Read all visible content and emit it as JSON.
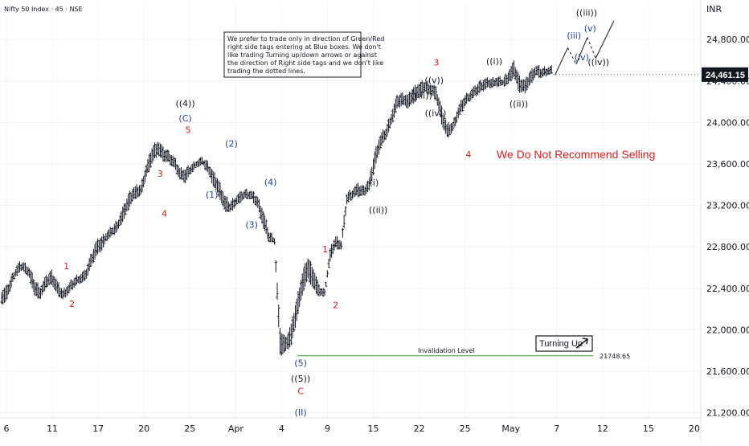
{
  "chart_data": {
    "type": "ohlc",
    "title": "Nifty 50 Index · 45 · NSE",
    "currency": "INR",
    "last_price_label": "24,461.15",
    "ylim": [
      21150,
      25150
    ],
    "y_ticks": [
      "24,800.00",
      "24,400.00",
      "24,000.00",
      "23,600.00",
      "23,200.00",
      "22,800.00",
      "22,400.00",
      "22,000.00",
      "21,600.00",
      "21,200.00"
    ],
    "y_tick_values": [
      24800,
      24400,
      24000,
      23600,
      23200,
      22800,
      22400,
      22000,
      21600,
      21200
    ],
    "x_ticks": [
      "6",
      "11",
      "17",
      "20",
      "25",
      "Apr",
      "4",
      "9",
      "15",
      "22",
      "25",
      "May",
      "7",
      "12",
      "15",
      "20"
    ],
    "note_lines": [
      "We prefer to trade only in direction of Green/Red",
      "right side tags entering at Blue boxes. We don't",
      "like trading Turning up/down arrows or against",
      "the direction of Right side tags and we don't like",
      "trading the dotted lines."
    ],
    "recommendation": "We Do Not Recommend Selling",
    "turning_label": "Turning Up",
    "invalidation_label": "Invalidation Level",
    "invalidation_value": "21748.65",
    "invalidation_level": 21748.65,
    "price_path": [
      [
        22380,
        22250
      ],
      [
        22420,
        22300
      ],
      [
        22540,
        22470
      ],
      [
        22640,
        22560
      ],
      [
        22650,
        22580
      ],
      [
        22600,
        22500
      ],
      [
        22470,
        22330
      ],
      [
        22420,
        22310
      ],
      [
        22510,
        22420
      ],
      [
        22570,
        22450
      ],
      [
        22460,
        22350
      ],
      [
        22380,
        22300
      ],
      [
        22440,
        22360
      ],
      [
        22500,
        22420
      ],
      [
        22540,
        22460
      ],
      [
        22560,
        22480
      ],
      [
        22720,
        22610
      ],
      [
        22850,
        22720
      ],
      [
        22900,
        22780
      ],
      [
        22950,
        22880
      ],
      [
        23000,
        22920
      ],
      [
        23080,
        22980
      ],
      [
        23200,
        23080
      ],
      [
        23330,
        23200
      ],
      [
        23380,
        23280
      ],
      [
        23400,
        23300
      ],
      [
        23600,
        23480
      ],
      [
        23760,
        23610
      ],
      [
        23830,
        23700
      ],
      [
        23750,
        23640
      ],
      [
        23720,
        23620
      ],
      [
        23660,
        23570
      ],
      [
        23560,
        23460
      ],
      [
        23550,
        23430
      ],
      [
        23590,
        23520
      ],
      [
        23640,
        23580
      ],
      [
        23650,
        23600
      ],
      [
        23620,
        23530
      ],
      [
        23520,
        23400
      ],
      [
        23440,
        23300
      ],
      [
        23300,
        23160
      ],
      [
        23230,
        23140
      ],
      [
        23290,
        23200
      ],
      [
        23320,
        23250
      ],
      [
        23350,
        23280
      ],
      [
        23330,
        23260
      ],
      [
        23280,
        23180
      ],
      [
        23150,
        22990
      ],
      [
        22950,
        22860
      ],
      [
        22900,
        22840
      ],
      [
        22000,
        21760
      ],
      [
        21920,
        21800
      ],
      [
        22050,
        21860
      ],
      [
        22300,
        22100
      ],
      [
        22550,
        22350
      ],
      [
        22700,
        22500
      ],
      [
        22600,
        22400
      ],
      [
        22420,
        22330
      ],
      [
        22380,
        22340
      ],
      [
        22780,
        22680
      ],
      [
        22900,
        22800
      ],
      [
        22860,
        22780
      ],
      [
        23320,
        23220
      ],
      [
        23360,
        23280
      ],
      [
        23400,
        23300
      ],
      [
        23380,
        23300
      ],
      [
        23450,
        23350
      ],
      [
        23720,
        23560
      ],
      [
        23880,
        23760
      ],
      [
        23950,
        23850
      ],
      [
        24100,
        23980
      ],
      [
        24250,
        24140
      ],
      [
        24280,
        24180
      ],
      [
        24260,
        24150
      ],
      [
        24340,
        24200
      ],
      [
        24380,
        24250
      ],
      [
        24400,
        24300
      ],
      [
        24380,
        24280
      ],
      [
        24330,
        24230
      ],
      [
        24150,
        24000
      ],
      [
        23980,
        23860
      ],
      [
        24000,
        23920
      ],
      [
        24150,
        24050
      ],
      [
        24250,
        24150
      ],
      [
        24300,
        24220
      ],
      [
        24340,
        24260
      ],
      [
        24400,
        24300
      ],
      [
        24420,
        24340
      ],
      [
        24420,
        24350
      ],
      [
        24440,
        24360
      ],
      [
        24420,
        24360
      ],
      [
        24500,
        24380
      ],
      [
        24580,
        24450
      ],
      [
        24440,
        24300
      ],
      [
        24400,
        24300
      ],
      [
        24500,
        24380
      ],
      [
        24550,
        24460
      ],
      [
        24520,
        24440
      ],
      [
        24540,
        24470
      ],
      [
        24530,
        24470
      ]
    ],
    "wave_labels": [
      {
        "text": "1",
        "color": "red",
        "t": 0.095,
        "price": 22585
      },
      {
        "text": "2",
        "color": "red",
        "t": 0.103,
        "price": 22220
      },
      {
        "text": "3",
        "color": "red",
        "t": 0.229,
        "price": 23475
      },
      {
        "text": "4",
        "color": "red",
        "t": 0.235,
        "price": 23090
      },
      {
        "text": "5",
        "color": "red",
        "t": 0.269,
        "price": 23900
      },
      {
        "text": "(C)",
        "color": "blue",
        "t": 0.265,
        "price": 24010
      },
      {
        "text": "((4))",
        "color": "black",
        "t": 0.265,
        "price": 24155
      },
      {
        "text": "(1)",
        "color": "blue",
        "t": 0.303,
        "price": 23275
      },
      {
        "text": "(2)",
        "color": "blue",
        "t": 0.331,
        "price": 23765
      },
      {
        "text": "(3)",
        "color": "blue",
        "t": 0.36,
        "price": 22985
      },
      {
        "text": "(4)",
        "color": "blue",
        "t": 0.387,
        "price": 23395
      },
      {
        "text": "1",
        "color": "red",
        "t": 0.465,
        "price": 22745
      },
      {
        "text": "2",
        "color": "red",
        "t": 0.48,
        "price": 22210
      },
      {
        "text": "(5)",
        "color": "blue",
        "t": 0.43,
        "price": 21650
      },
      {
        "text": "((5))",
        "color": "black",
        "t": 0.43,
        "price": 21500
      },
      {
        "text": "C",
        "color": "red",
        "t": 0.43,
        "price": 21380
      },
      {
        "text": "(II)",
        "color": "blue",
        "t": 0.43,
        "price": 21175
      },
      {
        "text": "(i)",
        "color": "black",
        "t": 0.535,
        "price": 23390
      },
      {
        "text": "((ii))",
        "color": "black",
        "t": 0.541,
        "price": 23125
      },
      {
        "text": "((iii))",
        "color": "black",
        "t": 0.603,
        "price": 24230
      },
      {
        "text": "((v))",
        "color": "black",
        "t": 0.621,
        "price": 24380
      },
      {
        "text": "((iv))",
        "color": "black",
        "t": 0.623,
        "price": 24060
      },
      {
        "text": "3",
        "color": "red",
        "t": 0.624,
        "price": 24550
      },
      {
        "text": "4",
        "color": "red",
        "t": 0.67,
        "price": 23660
      },
      {
        "text": "((i))",
        "color": "black",
        "t": 0.707,
        "price": 24560
      },
      {
        "text": "((ii))",
        "color": "black",
        "t": 0.742,
        "price": 24150
      },
      {
        "text": "((iii))",
        "color": "black",
        "t": 0.839,
        "price": 25030
      },
      {
        "text": "(v)",
        "color": "blue",
        "t": 0.844,
        "price": 24880
      },
      {
        "text": "(iii)",
        "color": "blue",
        "t": 0.821,
        "price": 24810
      },
      {
        "text": "(iv)",
        "color": "blue",
        "t": 0.832,
        "price": 24600
      },
      {
        "text": "((iv))",
        "color": "black",
        "t": 0.856,
        "price": 24555
      }
    ],
    "projection": [
      {
        "t": 0.794,
        "price": 24460,
        "dashed": false
      },
      {
        "t": 0.812,
        "price": 24720,
        "dashed": false
      },
      {
        "t": 0.824,
        "price": 24560,
        "dashed": true
      },
      {
        "t": 0.84,
        "price": 24820,
        "dashed": false
      },
      {
        "t": 0.852,
        "price": 24620,
        "dashed": true
      },
      {
        "t": 0.878,
        "price": 24980,
        "dashed": false
      }
    ]
  }
}
